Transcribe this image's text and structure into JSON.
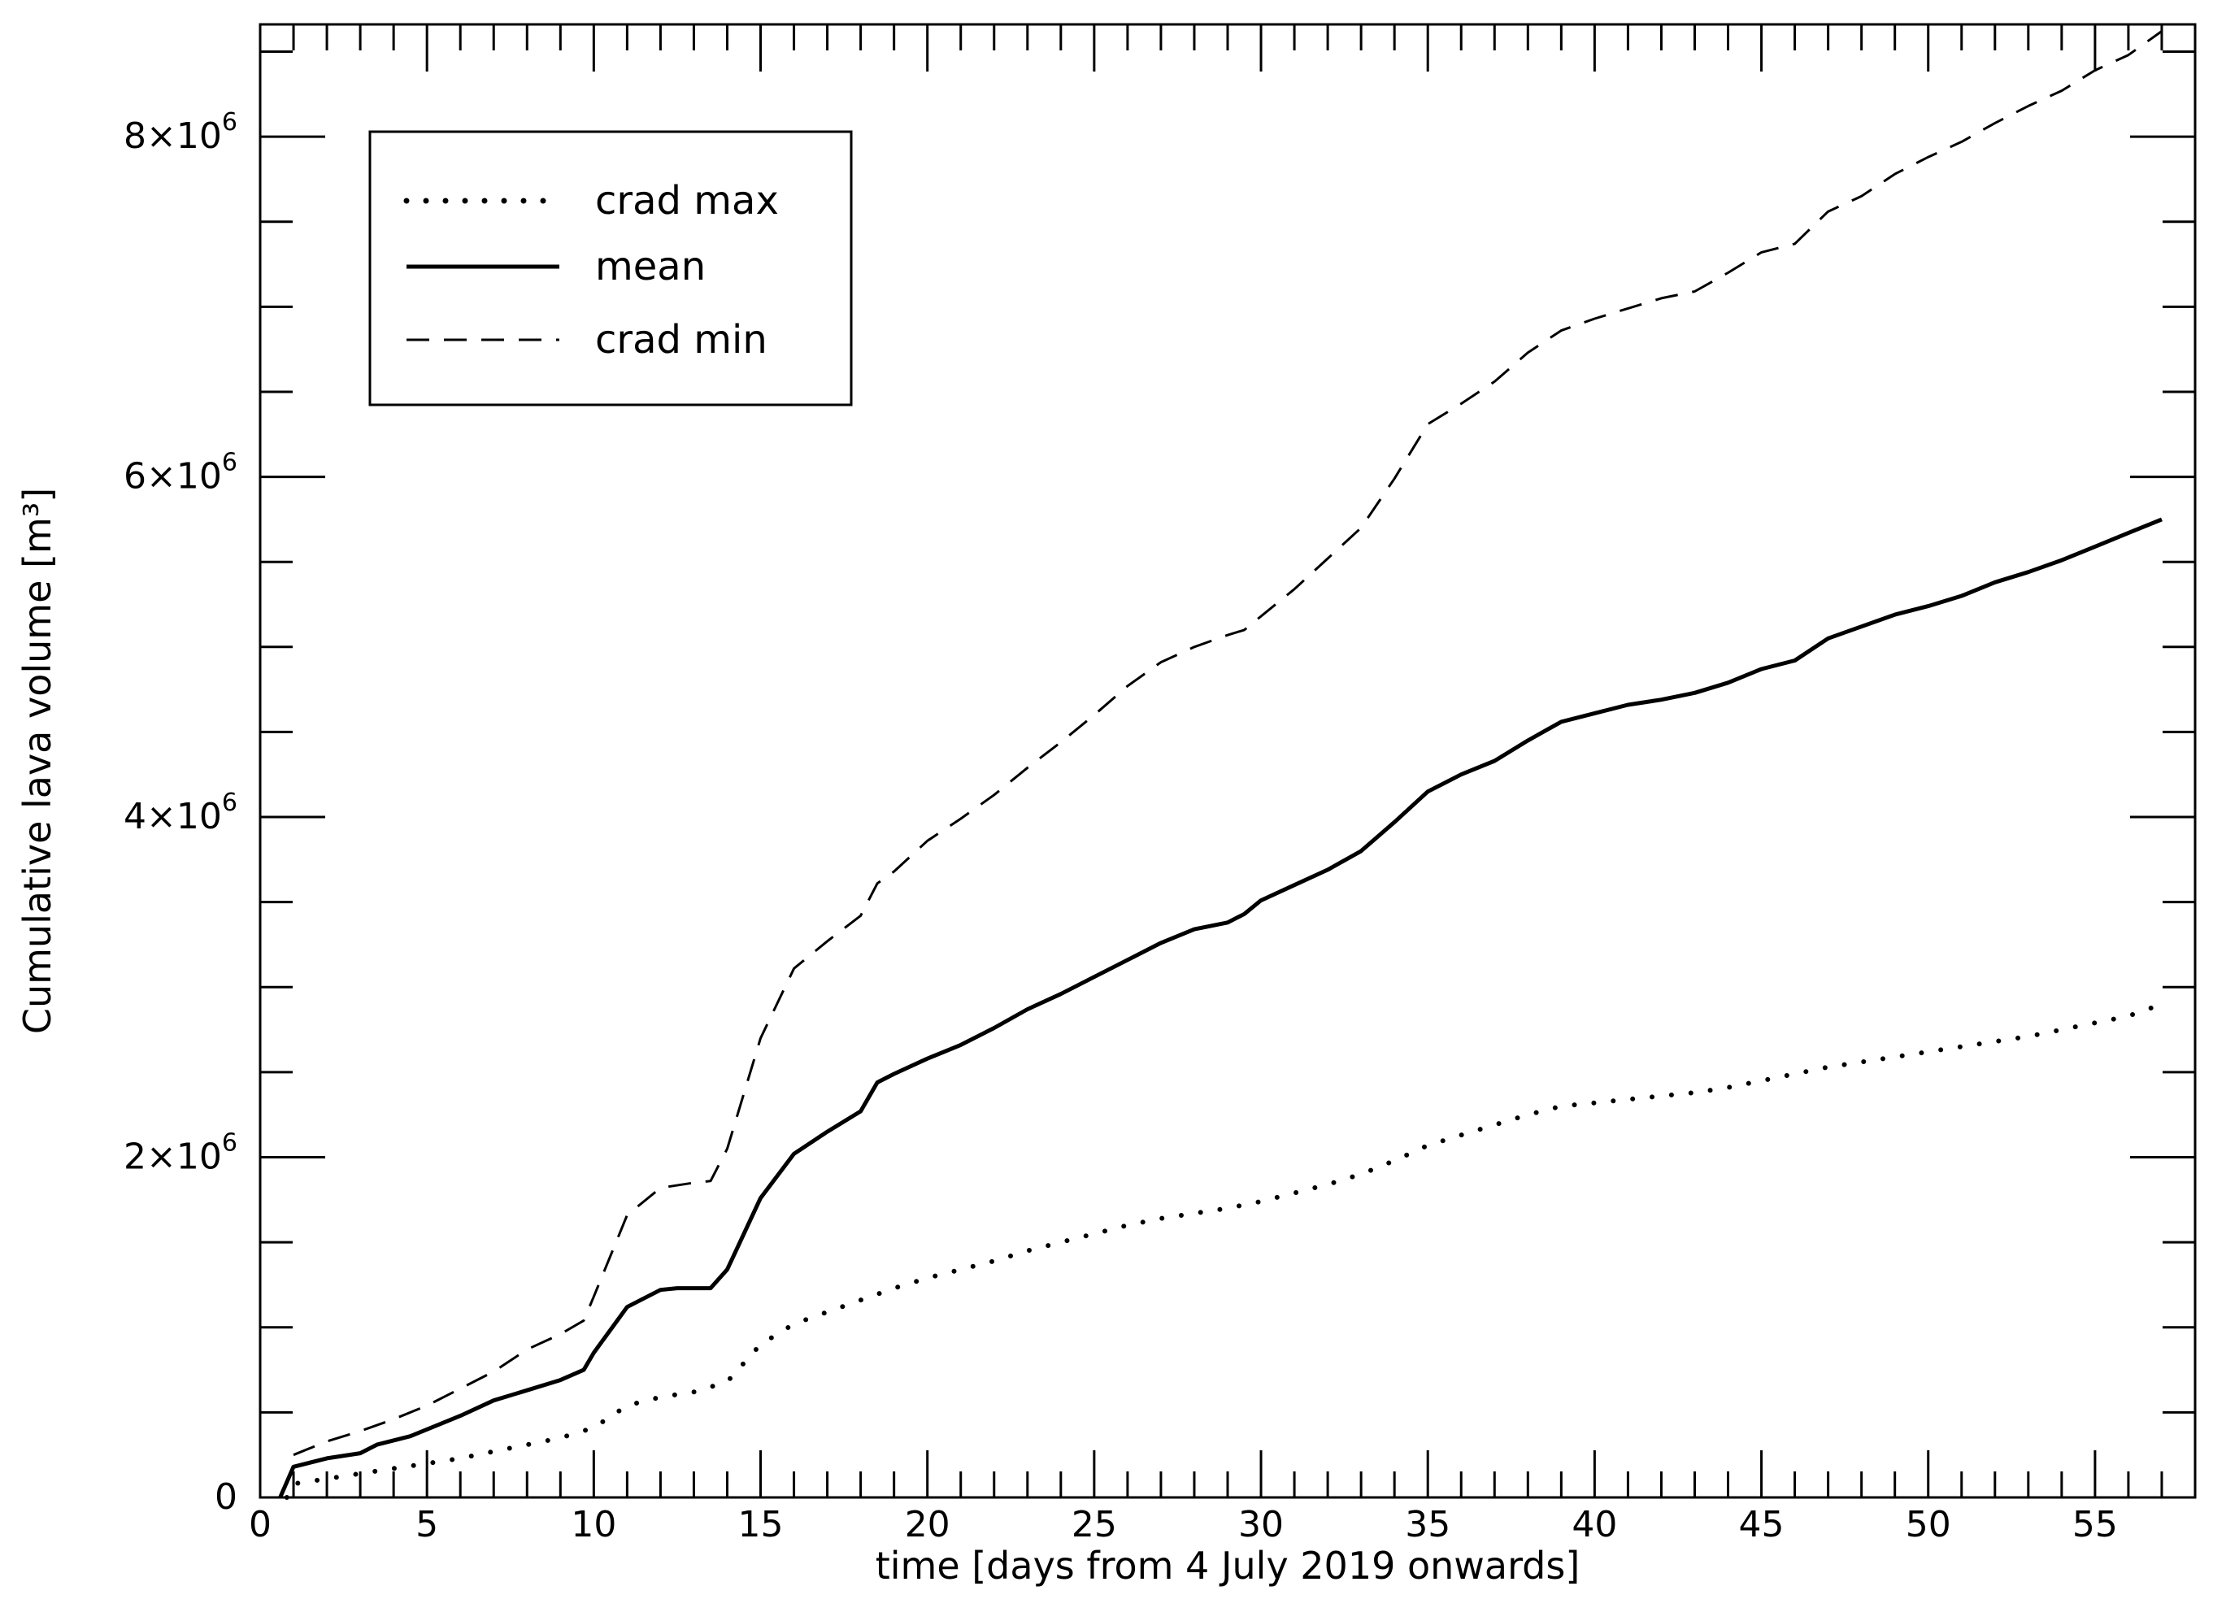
{
  "chart_data": {
    "type": "line",
    "xlabel": "time [days from 4 July 2019 onwards]",
    "ylabel": "Cumulative lava volume [m³]",
    "xlim": [
      0,
      58
    ],
    "ylim": [
      0,
      8660000
    ],
    "x_ticks": [
      0,
      5,
      10,
      15,
      20,
      25,
      30,
      35,
      40,
      45,
      50,
      55
    ],
    "x_tick_labels": [
      "0",
      "5",
      "10",
      "15",
      "20",
      "25",
      "30",
      "35",
      "40",
      "45",
      "50",
      "55"
    ],
    "x_minor_step": 1,
    "y_ticks": [
      {
        "value": 0,
        "mantissa": "0",
        "exponent": ""
      },
      {
        "value": 2000000,
        "mantissa": "2×10",
        "exponent": "6"
      },
      {
        "value": 4000000,
        "mantissa": "4×10",
        "exponent": "6"
      },
      {
        "value": 6000000,
        "mantissa": "6×10",
        "exponent": "6"
      },
      {
        "value": 8000000,
        "mantissa": "8×10",
        "exponent": "6"
      }
    ],
    "y_minor_step": 500000,
    "grid": false,
    "legend_position": "top-left",
    "series": [
      {
        "name": "crad max",
        "style": "dotted",
        "x": [
          0.8,
          1,
          2,
          3,
          4,
          5,
          6,
          7,
          8,
          9,
          10,
          11,
          12,
          13,
          14,
          15,
          16,
          17,
          18,
          19,
          20,
          21,
          22,
          23,
          24,
          25,
          26,
          27,
          28,
          29,
          30,
          31,
          32,
          33,
          34,
          35,
          36,
          37,
          38,
          39,
          40,
          41,
          42,
          43,
          44,
          45,
          46,
          47,
          48,
          49,
          50,
          51,
          52,
          53,
          54,
          55,
          56,
          57
        ],
        "y": [
          0,
          80000,
          110000,
          140000,
          170000,
          200000,
          230000,
          270000,
          310000,
          350000,
          410000,
          540000,
          590000,
          620000,
          680000,
          900000,
          1020000,
          1090000,
          1160000,
          1230000,
          1290000,
          1340000,
          1390000,
          1450000,
          1500000,
          1550000,
          1600000,
          1640000,
          1670000,
          1700000,
          1740000,
          1790000,
          1840000,
          1900000,
          1980000,
          2070000,
          2130000,
          2190000,
          2250000,
          2300000,
          2320000,
          2340000,
          2360000,
          2380000,
          2410000,
          2450000,
          2490000,
          2530000,
          2560000,
          2590000,
          2620000,
          2650000,
          2680000,
          2710000,
          2750000,
          2790000,
          2830000,
          2900000
        ]
      },
      {
        "name": "mean",
        "style": "solid",
        "x": [
          0.6,
          1,
          2,
          3,
          3.5,
          4.5,
          5,
          6,
          7,
          8,
          9,
          9.7,
          10,
          11,
          12,
          12.5,
          13.5,
          14,
          15,
          16,
          17,
          18,
          18.5,
          19,
          20,
          21,
          22,
          23,
          24,
          25,
          26,
          27,
          28,
          29,
          29.5,
          30,
          31,
          32,
          33,
          34,
          35,
          36,
          37,
          38,
          39,
          40,
          41,
          42,
          43,
          44,
          45,
          46,
          47,
          48,
          49,
          50,
          51,
          52,
          53,
          54,
          55,
          56,
          57
        ],
        "y": [
          0,
          180000,
          230000,
          260000,
          310000,
          360000,
          400000,
          480000,
          570000,
          630000,
          690000,
          750000,
          850000,
          1120000,
          1220000,
          1230000,
          1230000,
          1340000,
          1760000,
          2020000,
          2150000,
          2270000,
          2440000,
          2490000,
          2580000,
          2660000,
          2760000,
          2870000,
          2960000,
          3060000,
          3160000,
          3260000,
          3340000,
          3380000,
          3430000,
          3510000,
          3600000,
          3690000,
          3800000,
          3970000,
          4150000,
          4250000,
          4330000,
          4450000,
          4560000,
          4610000,
          4660000,
          4690000,
          4730000,
          4790000,
          4870000,
          4920000,
          5050000,
          5120000,
          5190000,
          5240000,
          5300000,
          5380000,
          5440000,
          5510000,
          5590000,
          5670000,
          5750000
        ]
      },
      {
        "name": "crad min",
        "style": "dashed",
        "x": [
          1,
          2,
          3,
          4,
          5,
          6,
          7,
          8,
          9,
          9.7,
          10,
          11,
          12,
          13,
          13.5,
          14,
          15,
          16,
          17,
          18,
          18.5,
          19,
          20,
          21,
          22,
          23,
          24,
          25,
          26,
          27,
          28,
          29,
          29.5,
          30,
          31,
          32,
          33,
          34,
          35,
          36,
          37,
          38,
          39,
          40,
          41,
          42,
          43,
          44,
          45,
          46,
          47,
          48,
          49,
          50,
          51,
          52,
          53,
          54,
          55,
          56,
          57
        ],
        "y": [
          250000,
          330000,
          390000,
          460000,
          540000,
          640000,
          740000,
          870000,
          960000,
          1040000,
          1180000,
          1660000,
          1820000,
          1850000,
          1860000,
          2050000,
          2700000,
          3110000,
          3270000,
          3420000,
          3610000,
          3680000,
          3860000,
          3990000,
          4130000,
          4290000,
          4440000,
          4600000,
          4770000,
          4910000,
          5000000,
          5070000,
          5100000,
          5180000,
          5340000,
          5520000,
          5700000,
          5990000,
          6310000,
          6430000,
          6560000,
          6730000,
          6860000,
          6930000,
          6990000,
          7050000,
          7090000,
          7200000,
          7320000,
          7370000,
          7560000,
          7650000,
          7780000,
          7880000,
          7970000,
          8080000,
          8180000,
          8270000,
          8390000,
          8480000,
          8620000
        ]
      }
    ]
  }
}
